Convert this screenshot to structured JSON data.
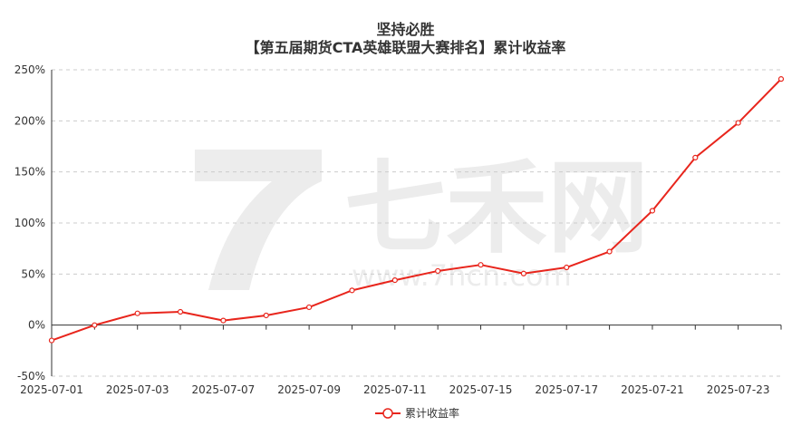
{
  "watermark": {
    "text": "七禾网",
    "url": "www.7hcn.com"
  },
  "chart_data": {
    "type": "line",
    "title_line1": "坚持必胜",
    "title_line2": "【第五届期货CTA英雄联盟大赛排名】累计收益率",
    "xlabel": "",
    "ylabel": "",
    "x": [
      "2025-07-01",
      "2025-07-02",
      "2025-07-03",
      "2025-07-04",
      "2025-07-07",
      "2025-07-08",
      "2025-07-09",
      "2025-07-10",
      "2025-07-11",
      "2025-07-14",
      "2025-07-15",
      "2025-07-16",
      "2025-07-17",
      "2025-07-18",
      "2025-07-21",
      "2025-07-22",
      "2025-07-23",
      "2025-07-24"
    ],
    "x_tick_labels": [
      "2025-07-01",
      "2025-07-03",
      "2025-07-07",
      "2025-07-09",
      "2025-07-11",
      "2025-07-15",
      "2025-07-17",
      "2025-07-21",
      "2025-07-23"
    ],
    "y_tick_labels": [
      "-50%",
      "0%",
      "50%",
      "100%",
      "150%",
      "200%",
      "250%"
    ],
    "y_ticks": [
      -50,
      0,
      50,
      100,
      150,
      200,
      250
    ],
    "ylim": [
      -50,
      250
    ],
    "grid": true,
    "legend_position": "bottom-center",
    "series": [
      {
        "name": "累计收益率",
        "color": "#e8251c",
        "values": [
          -15.0,
          0.0,
          11.5,
          13.0,
          4.5,
          9.5,
          17.5,
          34.0,
          44.0,
          53.0,
          59.0,
          50.5,
          56.5,
          72.0,
          112.0,
          164.0,
          198.0,
          241.0
        ]
      }
    ]
  }
}
